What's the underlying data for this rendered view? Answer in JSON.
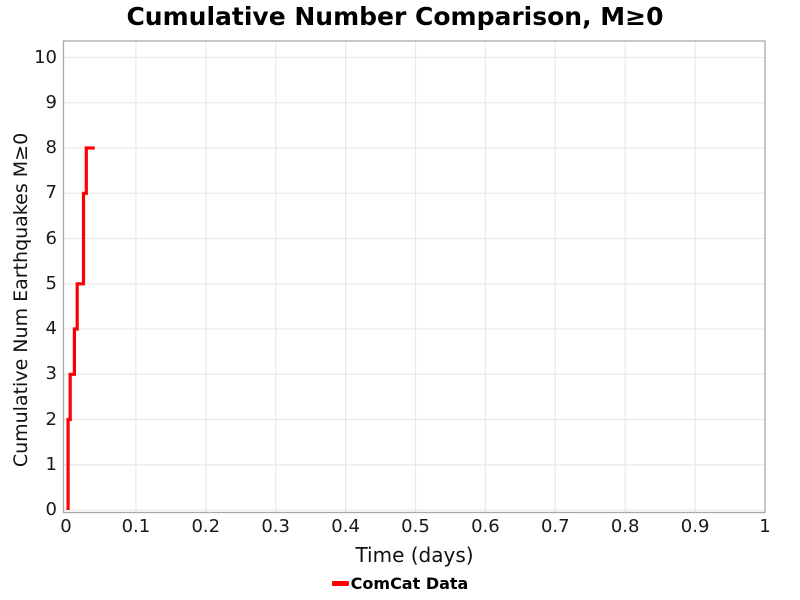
{
  "title": "Cumulative Number Comparison, M≥0",
  "axes": {
    "xlabel": "Time (days)",
    "ylabel": "Cumulative Num Earthquakes M≥0",
    "x_ticks": {
      "values": [
        0,
        0.1,
        0.2,
        0.3,
        0.4,
        0.5,
        0.6,
        0.7,
        0.8,
        0.9,
        1
      ],
      "labels": [
        "0",
        "0.1",
        "0.2",
        "0.3",
        "0.4",
        "0.5",
        "0.6",
        "0.7",
        "0.8",
        "0.9",
        "1"
      ]
    },
    "y_ticks": {
      "values": [
        0,
        1,
        2,
        3,
        4,
        5,
        6,
        7,
        8,
        9,
        10
      ],
      "labels": [
        "0",
        "1",
        "2",
        "3",
        "4",
        "5",
        "6",
        "7",
        "8",
        "9",
        "10"
      ]
    }
  },
  "legend": {
    "label": "ComCat Data",
    "color": "#ff0000"
  },
  "colors": {
    "line": "#ff0000",
    "grid": "#e9e9e9",
    "spine": "#a9a9a9",
    "background": "#ffffff",
    "text": "#000000"
  },
  "chart_data": {
    "type": "line",
    "subtype": "cumulative-step",
    "title": "Cumulative Number Comparison, M≥0",
    "xlabel": "Time (days)",
    "ylabel": "Cumulative Num Earthquakes M≥0",
    "xlim": [
      0,
      1
    ],
    "ylim": [
      0,
      10.4
    ],
    "grid": true,
    "legend_position": "bottom-center",
    "series": [
      {
        "name": "ComCat Data",
        "color": "#ff0000",
        "event_times_days": [
          0.003,
          0.003,
          0.006,
          0.012,
          0.016,
          0.025,
          0.025,
          0.029
        ],
        "cumulative_counts": [
          1,
          2,
          3,
          4,
          5,
          6,
          7,
          8
        ],
        "end_time_days": 0.041,
        "steps": [
          [
            0.003,
            0
          ],
          [
            0.003,
            2
          ],
          [
            0.006,
            2
          ],
          [
            0.006,
            3
          ],
          [
            0.012,
            3
          ],
          [
            0.012,
            4
          ],
          [
            0.016,
            4
          ],
          [
            0.016,
            5
          ],
          [
            0.025,
            5
          ],
          [
            0.025,
            7
          ],
          [
            0.029,
            7
          ],
          [
            0.029,
            8
          ],
          [
            0.041,
            8
          ]
        ]
      }
    ]
  }
}
